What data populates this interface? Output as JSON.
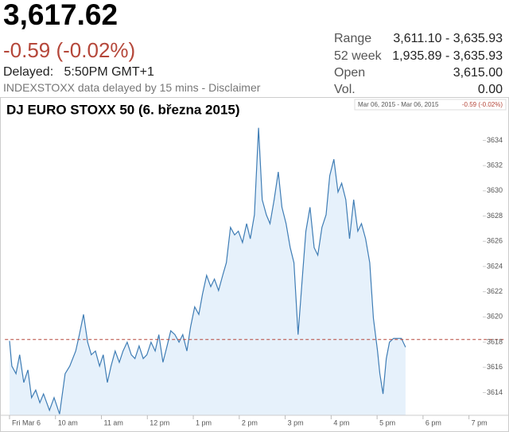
{
  "quote": {
    "price": "3,617.62",
    "change": "-0.59 (-0.02%)",
    "delayed_label": "Delayed:",
    "delayed_time": "5:50PM GMT+1",
    "disclaimer": "INDEXSTOXX data delayed by 15 mins - Disclaimer",
    "stats": [
      {
        "label": "Range",
        "value": "3,611.10 - 3,635.93"
      },
      {
        "label": "52 week",
        "value": "1,935.89 - 3,635.93"
      },
      {
        "label": "Open",
        "value": "3,615.00"
      },
      {
        "label": "Vol.",
        "value": "0.00"
      }
    ]
  },
  "chart_data": {
    "type": "line",
    "title": "DJ EURO STOXX 50 (6. března 2015)",
    "date_range": "Mar 06, 2015 - Mar 06, 2015",
    "change_label": "-0.59 (-0.02%)",
    "xlim": [
      8.9,
      19.3
    ],
    "ylim": [
      3612.2,
      3636.3
    ],
    "xticks": [
      {
        "value": 9,
        "label": "Fri Mar 6"
      },
      {
        "value": 10,
        "label": "10 am"
      },
      {
        "value": 11,
        "label": "11 am"
      },
      {
        "value": 12,
        "label": "12 pm"
      },
      {
        "value": 13,
        "label": "1 pm"
      },
      {
        "value": 14,
        "label": "2 pm"
      },
      {
        "value": 15,
        "label": "3 pm"
      },
      {
        "value": 16,
        "label": "4 pm"
      },
      {
        "value": 17,
        "label": "5 pm"
      },
      {
        "value": 18,
        "label": "6 pm"
      },
      {
        "value": 19,
        "label": "7 pm"
      }
    ],
    "yticks": [
      3614,
      3616,
      3618,
      3620,
      3622,
      3624,
      3626,
      3628,
      3630,
      3632,
      3634
    ],
    "reference_line": 3618.21,
    "reference_color": "#b5473a",
    "x": [
      9.0,
      9.05,
      9.14,
      9.22,
      9.31,
      9.4,
      9.48,
      9.57,
      9.66,
      9.74,
      9.87,
      9.97,
      10.09,
      10.21,
      10.31,
      10.44,
      10.52,
      10.61,
      10.7,
      10.78,
      10.87,
      10.96,
      11.04,
      11.13,
      11.21,
      11.3,
      11.39,
      11.47,
      11.56,
      11.65,
      11.73,
      11.82,
      11.91,
      11.99,
      12.08,
      12.17,
      12.25,
      12.34,
      12.43,
      12.51,
      12.6,
      12.69,
      12.77,
      12.86,
      12.94,
      13.03,
      13.12,
      13.2,
      13.29,
      13.38,
      13.46,
      13.55,
      13.64,
      13.72,
      13.81,
      13.9,
      13.98,
      14.07,
      14.16,
      14.24,
      14.33,
      14.42,
      14.5,
      14.59,
      14.67,
      14.76,
      14.85,
      14.93,
      15.02,
      15.11,
      15.19,
      15.28,
      15.37,
      15.45,
      15.54,
      15.63,
      15.71,
      15.8,
      15.89,
      15.97,
      16.06,
      16.15,
      16.23,
      16.32,
      16.4,
      16.49,
      16.58,
      16.66,
      16.75,
      16.84,
      16.92,
      17.01,
      17.06,
      17.13,
      17.2,
      17.27,
      17.36,
      17.53,
      17.62
    ],
    "series": [
      {
        "name": "DJ EURO STOXX 50",
        "color": "#3f7db5",
        "fill": "#e6f1fb",
        "values": [
          3618.1,
          3616.1,
          3615.5,
          3617.0,
          3614.8,
          3615.8,
          3613.6,
          3614.2,
          3613.2,
          3613.9,
          3612.6,
          3613.6,
          3612.3,
          3615.5,
          3616.1,
          3617.3,
          3618.6,
          3620.2,
          3618.0,
          3617.0,
          3617.3,
          3616.1,
          3617.0,
          3614.8,
          3616.1,
          3617.3,
          3616.4,
          3617.3,
          3618.0,
          3617.0,
          3616.7,
          3617.7,
          3616.7,
          3617.0,
          3618.0,
          3617.3,
          3618.6,
          3616.4,
          3617.7,
          3618.9,
          3618.6,
          3618.0,
          3618.6,
          3617.3,
          3619.2,
          3620.8,
          3620.2,
          3621.8,
          3623.3,
          3622.4,
          3623.0,
          3622.1,
          3623.3,
          3624.3,
          3627.1,
          3626.5,
          3626.8,
          3625.9,
          3627.4,
          3626.2,
          3628.1,
          3635.0,
          3629.3,
          3628.1,
          3627.4,
          3629.3,
          3631.5,
          3628.7,
          3627.4,
          3625.5,
          3624.3,
          3618.6,
          3623.0,
          3626.8,
          3628.7,
          3625.5,
          3624.9,
          3627.1,
          3628.1,
          3631.2,
          3632.5,
          3629.9,
          3630.6,
          3629.3,
          3626.2,
          3629.3,
          3626.8,
          3627.4,
          3626.2,
          3624.3,
          3619.9,
          3617.3,
          3615.5,
          3613.9,
          3616.7,
          3618.0,
          3618.3,
          3618.3,
          3617.6
        ]
      }
    ]
  }
}
